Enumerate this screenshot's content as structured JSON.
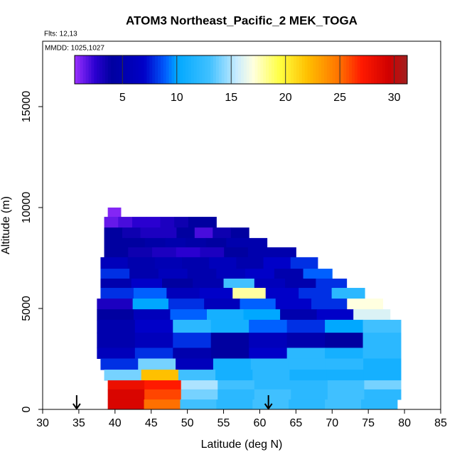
{
  "chart_data": {
    "type": "curtain",
    "title": "ATOM3 Northeast_Pacific_2 MEK_TOGA",
    "subtitle": "Flts: 12,13",
    "annotation": "MMDD: 1025,1027",
    "x_label": "Latitude (deg N)",
    "y_label": "Altitude (m)",
    "xlim": [
      30,
      85
    ],
    "xticks": [
      30,
      35,
      40,
      45,
      50,
      55,
      60,
      65,
      70,
      75,
      80,
      85
    ],
    "ylim": [
      0,
      18240
    ],
    "yticks": [
      0,
      5000,
      10000,
      15000
    ],
    "colorbar_lim": [
      0.6,
      31.2
    ],
    "colorbar_ticks": [
      5,
      10,
      15,
      20,
      25,
      30
    ],
    "colorscale": [
      [
        0.6,
        "#9b30ff"
      ],
      [
        2.5,
        "#2a00d0"
      ],
      [
        4,
        "#0000a0"
      ],
      [
        7,
        "#0000c8"
      ],
      [
        9,
        "#0060ff"
      ],
      [
        10,
        "#00a8ff"
      ],
      [
        13,
        "#40c0ff"
      ],
      [
        15.5,
        "#c8ecff"
      ],
      [
        17,
        "#ffffe0"
      ],
      [
        19.5,
        "#ffff40"
      ],
      [
        22,
        "#ffc000"
      ],
      [
        25,
        "#ff7000"
      ],
      [
        27,
        "#ff1a00"
      ],
      [
        29.5,
        "#d00000"
      ],
      [
        31.2,
        "#a02020"
      ]
    ],
    "arrows": [
      34.7,
      61.2
    ],
    "rows": [
      {
        "altitude": [
          9540,
          10000
        ],
        "latitude": [
          39,
          40.8
        ],
        "values": [
          1,
          1
        ]
      },
      {
        "altitude": [
          9010,
          9540
        ],
        "latitude": [
          38.5,
          54
        ],
        "values": [
          1.5,
          2,
          2.5,
          2.5,
          3,
          3.5,
          4,
          4
        ]
      },
      {
        "altitude": [
          8490,
          9010
        ],
        "latitude": [
          38.5,
          58.5
        ],
        "values": [
          4,
          3.5,
          3,
          3,
          4,
          2,
          3.5,
          4
        ]
      },
      {
        "altitude": [
          8030,
          8490
        ],
        "latitude": [
          38.5,
          61
        ],
        "values": [
          4,
          4,
          4.5,
          5,
          4.5,
          4,
          5,
          5
        ]
      },
      {
        "altitude": [
          7540,
          8030
        ],
        "latitude": [
          38.5,
          65
        ],
        "values": [
          4,
          3.5,
          3,
          2.5,
          3,
          4,
          5,
          5
        ]
      },
      {
        "altitude": [
          6970,
          7540
        ],
        "latitude": [
          38,
          68
        ],
        "values": [
          6,
          5,
          5.5,
          5,
          6,
          5,
          7,
          8
        ]
      },
      {
        "altitude": [
          6480,
          6970
        ],
        "latitude": [
          38,
          70
        ],
        "values": [
          8,
          5,
          6,
          5,
          6,
          7,
          5,
          9
        ]
      },
      {
        "altitude": [
          6020,
          6480
        ],
        "latitude": [
          38,
          72
        ],
        "values": [
          5,
          7,
          4,
          5,
          13,
          6,
          5,
          8
        ]
      },
      {
        "altitude": [
          5490,
          6020
        ],
        "latitude": [
          38,
          74.5
        ],
        "values": [
          8,
          9,
          6,
          7,
          18,
          7,
          8,
          12
        ]
      },
      {
        "altitude": [
          4960,
          5490
        ],
        "latitude": [
          37.5,
          77
        ],
        "values": [
          3,
          10,
          8,
          6,
          9,
          7,
          8,
          17
        ]
      },
      {
        "altitude": [
          4440,
          4960
        ],
        "latitude": [
          37.5,
          78
        ],
        "values": [
          4,
          6,
          9,
          11,
          10,
          5,
          7,
          16
        ]
      },
      {
        "altitude": [
          3800,
          4440
        ],
        "latitude": [
          37.5,
          79.5
        ],
        "values": [
          5,
          7,
          12,
          11,
          9,
          8,
          10,
          13
        ]
      },
      {
        "altitude": [
          3050,
          3800
        ],
        "latitude": [
          37.5,
          79.5
        ],
        "values": [
          5,
          6,
          8,
          4,
          6,
          5,
          4,
          12
        ]
      },
      {
        "altitude": [
          2520,
          3050
        ],
        "latitude": [
          37.5,
          79.5
        ],
        "values": [
          6,
          8,
          5,
          4,
          7,
          12,
          11,
          12
        ]
      },
      {
        "altitude": [
          1970,
          2520
        ],
        "latitude": [
          38,
          79.5
        ],
        "values": [
          8,
          14,
          6,
          11,
          12,
          12,
          12,
          11
        ]
      },
      {
        "altitude": [
          1440,
          1970
        ],
        "latitude": [
          38.5,
          79.5
        ],
        "values": [
          14,
          22,
          13,
          11,
          12,
          11,
          11,
          11
        ]
      },
      {
        "altitude": [
          990,
          1440
        ],
        "latitude": [
          39,
          79.5
        ],
        "values": [
          28,
          27,
          15,
          13,
          12,
          12,
          13,
          14
        ]
      },
      {
        "altitude": [
          490,
          990
        ],
        "latitude": [
          39,
          79.5
        ],
        "values": [
          29,
          26,
          14,
          12,
          13,
          12,
          13,
          12
        ]
      },
      {
        "altitude": [
          0,
          490
        ],
        "latitude": [
          39,
          79
        ],
        "values": [
          29,
          25,
          13,
          12,
          13,
          12,
          13,
          12
        ]
      }
    ]
  }
}
